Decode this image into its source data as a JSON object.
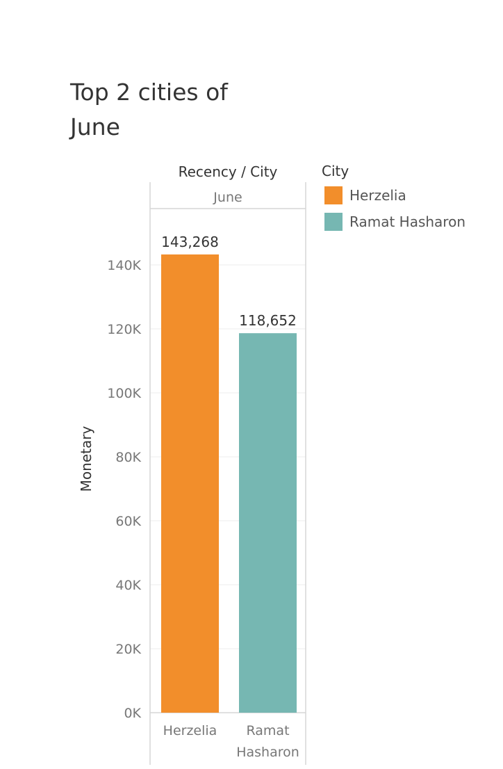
{
  "title": "Top 2 cities of June",
  "legend": {
    "title": "City",
    "items": [
      {
        "label": "Herzelia",
        "color": "#f28e2b"
      },
      {
        "label": "Ramat Hasharon",
        "color": "#76b7b2"
      }
    ]
  },
  "chart_data": {
    "type": "bar",
    "header_title": "Recency / City",
    "column_header": "June",
    "ylabel": "Monetary",
    "xlabel": "",
    "ylim": [
      0,
      160000
    ],
    "yticks": [
      0,
      20000,
      40000,
      60000,
      80000,
      100000,
      120000,
      140000
    ],
    "ytick_labels": [
      "0K",
      "20K",
      "40K",
      "60K",
      "80K",
      "100K",
      "120K",
      "140K"
    ],
    "categories": [
      "Herzelia",
      "Ramat\nHasharon"
    ],
    "values": [
      143268,
      118652
    ],
    "value_labels": [
      "143,268",
      "118,652"
    ],
    "colors": [
      "#f28e2b",
      "#76b7b2"
    ],
    "grid": true,
    "legend_position": "right"
  }
}
